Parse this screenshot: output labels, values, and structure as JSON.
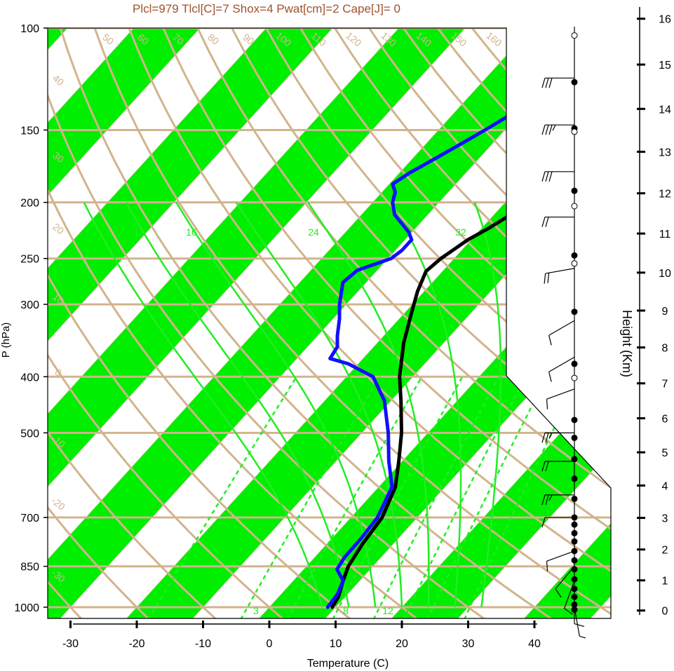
{
  "chart_data": {
    "type": "line",
    "title": "Plcl=979 Tlcl[C]=7 Shox=4 Pwat[cm]=2 Cape[J]= 0",
    "xlabel": "Temperature (C)",
    "ylabel": "P (hPa)",
    "y2label": "Height (Km)",
    "x_ticks": [
      -30,
      -20,
      -10,
      0,
      10,
      20,
      30,
      40
    ],
    "p_ticks": [
      100,
      150,
      200,
      250,
      300,
      400,
      500,
      700,
      850,
      1000
    ],
    "height_ticks": [
      0,
      1,
      2,
      3,
      4,
      5,
      6,
      7,
      8,
      9,
      10,
      11,
      12,
      13,
      14,
      15,
      16
    ],
    "xlim": [
      -34,
      50
    ],
    "plim": [
      1050,
      100
    ],
    "colors": {
      "temperature": "#000000",
      "dewpoint": "#1010ff",
      "isotherm_band": "#00ee00",
      "background_lines": "#d2b48c",
      "mixing_ratio": "#20ee20",
      "title": "#a0522d"
    },
    "isotherm_labels": [
      "-30",
      "-20",
      "-10",
      "0",
      "10",
      "20",
      "30"
    ],
    "dry_adiabat_labels": [
      "50",
      "60",
      "70",
      "80",
      "90",
      "100",
      "110",
      "120",
      "130",
      "140",
      "150",
      "160"
    ],
    "dry_adiabat_left_labels": [
      "40",
      "30",
      "20",
      "10",
      "0",
      "-10",
      "-20",
      "-30"
    ],
    "moist_adiabat_labels": [
      "12",
      "16",
      "24",
      "32"
    ],
    "mixing_ratio_labels": [
      "3",
      "8",
      "12"
    ],
    "series": [
      {
        "key": "temperature",
        "points": [
          [
            9.5,
            1000
          ],
          [
            9.0,
            960
          ],
          [
            7.5,
            900
          ],
          [
            6.3,
            850
          ],
          [
            5.4,
            780
          ],
          [
            4.7,
            700
          ],
          [
            2.5,
            620
          ],
          [
            -0.5,
            560
          ],
          [
            -4.0,
            500
          ],
          [
            -8.5,
            440
          ],
          [
            -12.0,
            400
          ],
          [
            -16.0,
            350
          ],
          [
            -19.0,
            310
          ],
          [
            -21.0,
            285
          ],
          [
            -22.5,
            263
          ],
          [
            -22.0,
            250
          ],
          [
            -20.5,
            232
          ],
          [
            -19.0,
            222
          ],
          [
            -17.5,
            210
          ],
          [
            -16.5,
            200
          ],
          [
            -15.5,
            190
          ],
          [
            -14.5,
            182
          ],
          [
            -13.0,
            170
          ],
          [
            -12.0,
            160
          ],
          [
            -11.0,
            150
          ],
          [
            -10.5,
            140
          ],
          [
            -10.0,
            132
          ],
          [
            -10.5,
            124
          ],
          [
            -11.0,
            116
          ],
          [
            -12.5,
            108
          ]
        ]
      },
      {
        "key": "dewpoint",
        "points": [
          [
            8.8,
            1000
          ],
          [
            8.5,
            950
          ],
          [
            7.5,
            900
          ],
          [
            5.0,
            860
          ],
          [
            4.5,
            820
          ],
          [
            4.4,
            760
          ],
          [
            4.0,
            700
          ],
          [
            2.0,
            620
          ],
          [
            -2.0,
            560
          ],
          [
            -6.0,
            500
          ],
          [
            -11.0,
            440
          ],
          [
            -16.0,
            400
          ],
          [
            -21.5,
            380
          ],
          [
            -25.0,
            372
          ],
          [
            -25.5,
            355
          ],
          [
            -27.0,
            340
          ],
          [
            -29.0,
            318
          ],
          [
            -31.0,
            300
          ],
          [
            -33.5,
            275
          ],
          [
            -33.0,
            262
          ],
          [
            -29.5,
            250
          ],
          [
            -29.0,
            242
          ],
          [
            -29.0,
            232
          ],
          [
            -30.5,
            225
          ],
          [
            -35.0,
            210
          ],
          [
            -37.0,
            200
          ],
          [
            -38.0,
            192
          ],
          [
            -39.5,
            186
          ],
          [
            -38.5,
            178
          ],
          [
            -37.0,
            170
          ],
          [
            -35.0,
            160
          ],
          [
            -33.0,
            150
          ],
          [
            -31.0,
            140
          ],
          [
            -29.0,
            130
          ],
          [
            -27.0,
            120
          ],
          [
            -25.5,
            110
          ]
        ]
      }
    ],
    "wind_barbs": [
      {
        "p": 122,
        "speed": 30,
        "dir": 270
      },
      {
        "p": 147,
        "speed": 35,
        "dir": 270
      },
      {
        "p": 177,
        "speed": 30,
        "dir": 270
      },
      {
        "p": 212,
        "speed": 20,
        "dir": 270
      },
      {
        "p": 260,
        "speed": 20,
        "dir": 260
      },
      {
        "p": 320,
        "speed": 10,
        "dir": 240
      },
      {
        "p": 370,
        "speed": 10,
        "dir": 240
      },
      {
        "p": 420,
        "speed": 10,
        "dir": 250
      },
      {
        "p": 500,
        "speed": 25,
        "dir": 270
      },
      {
        "p": 560,
        "speed": 20,
        "dir": 270
      },
      {
        "p": 640,
        "speed": 25,
        "dir": 270
      },
      {
        "p": 700,
        "speed": 10,
        "dir": 270
      },
      {
        "p": 800,
        "speed": 10,
        "dir": 250
      },
      {
        "p": 850,
        "speed": 10,
        "dir": 220
      },
      {
        "p": 900,
        "speed": 10,
        "dir": 200
      },
      {
        "p": 950,
        "speed": 10,
        "dir": 180
      },
      {
        "p": 1000,
        "speed": 5,
        "dir": 170
      }
    ],
    "staff_dots": [
      {
        "p": 103,
        "filled": false
      },
      {
        "p": 124,
        "filled": true
      },
      {
        "p": 149,
        "filled": true
      },
      {
        "p": 151,
        "filled": false
      },
      {
        "p": 191,
        "filled": true
      },
      {
        "p": 203,
        "filled": false
      },
      {
        "p": 247,
        "filled": true
      },
      {
        "p": 255,
        "filled": false
      },
      {
        "p": 309,
        "filled": true
      },
      {
        "p": 380,
        "filled": true
      },
      {
        "p": 402,
        "filled": false
      },
      {
        "p": 475,
        "filled": true
      },
      {
        "p": 510,
        "filled": true
      },
      {
        "p": 555,
        "filled": true
      },
      {
        "p": 600,
        "filled": true
      },
      {
        "p": 650,
        "filled": true
      },
      {
        "p": 700,
        "filled": true
      },
      {
        "p": 720,
        "filled": true
      },
      {
        "p": 745,
        "filled": true
      },
      {
        "p": 770,
        "filled": true
      },
      {
        "p": 800,
        "filled": true
      },
      {
        "p": 830,
        "filled": true
      },
      {
        "p": 860,
        "filled": true
      },
      {
        "p": 895,
        "filled": true
      },
      {
        "p": 930,
        "filled": true
      },
      {
        "p": 960,
        "filled": true
      },
      {
        "p": 990,
        "filled": true
      },
      {
        "p": 1010,
        "filled": true
      }
    ]
  }
}
